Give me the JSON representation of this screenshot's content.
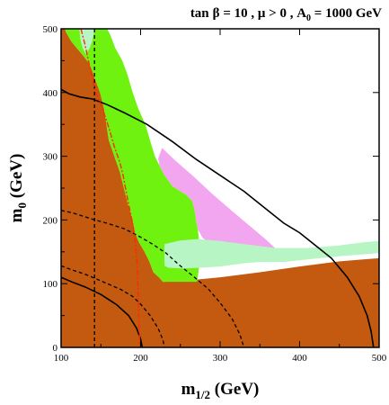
{
  "chart_data": {
    "type": "area",
    "title_parts": {
      "tan": "tan",
      "beta": "β",
      "eq1": " = 10 ,  ",
      "mu": "μ",
      "gt": " > 0 , A",
      "a_sub": "0",
      "eq2": " = 1000 GeV"
    },
    "xlabel": {
      "main": "m",
      "sub": "1/2",
      "unit": " (GeV)"
    },
    "ylabel": {
      "main": "m",
      "sub": "0",
      "unit": " (GeV)"
    },
    "xlim": [
      100,
      500
    ],
    "ylim": [
      0,
      500
    ],
    "x_ticks": [
      100,
      200,
      300,
      400,
      500
    ],
    "y_ticks": [
      0,
      100,
      200,
      300,
      400,
      500
    ],
    "colors": {
      "brown": "#c35a10",
      "green": "#6ff20f",
      "pink": "#f3a6f0",
      "light_green": "#b8f5c4",
      "red_dash": "#ff2a00",
      "black": "#000000"
    },
    "regions": [
      {
        "name": "brown-excluded-region",
        "color": "brown",
        "points": [
          [
            100,
            0
          ],
          [
            100,
            500
          ],
          [
            105,
            500
          ],
          [
            106,
            495
          ],
          [
            113,
            480
          ],
          [
            121,
            468
          ],
          [
            129,
            456
          ],
          [
            135,
            446
          ],
          [
            139,
            435
          ],
          [
            143,
            420
          ],
          [
            149,
            400
          ],
          [
            154,
            375
          ],
          [
            157,
            350
          ],
          [
            160,
            325
          ],
          [
            167,
            300
          ],
          [
            174,
            275
          ],
          [
            179,
            250
          ],
          [
            184,
            225
          ],
          [
            190,
            200
          ],
          [
            193,
            180
          ],
          [
            198,
            165
          ],
          [
            205,
            150
          ],
          [
            211,
            135
          ],
          [
            216,
            118
          ],
          [
            223,
            110
          ],
          [
            228,
            103
          ],
          [
            250,
            104
          ],
          [
            300,
            110
          ],
          [
            350,
            118
          ],
          [
            400,
            127
          ],
          [
            450,
            135
          ],
          [
            480,
            138
          ],
          [
            500,
            140
          ],
          [
            500,
            0
          ]
        ]
      },
      {
        "name": "green-band-region",
        "color": "green",
        "points": [
          [
            100,
            500
          ],
          [
            158,
            500
          ],
          [
            162,
            490
          ],
          [
            168,
            470
          ],
          [
            177,
            450
          ],
          [
            183,
            430
          ],
          [
            190,
            400
          ],
          [
            197,
            375
          ],
          [
            206,
            350
          ],
          [
            213,
            320
          ],
          [
            218,
            300
          ],
          [
            224,
            285
          ],
          [
            230,
            270
          ],
          [
            240,
            253
          ],
          [
            250,
            245
          ],
          [
            257,
            240
          ],
          [
            265,
            230
          ],
          [
            268,
            215
          ],
          [
            270,
            198
          ],
          [
            272,
            185
          ],
          [
            275,
            150
          ],
          [
            273,
            120
          ],
          [
            271,
            103
          ],
          [
            228,
            103
          ],
          [
            223,
            110
          ],
          [
            216,
            118
          ],
          [
            211,
            135
          ],
          [
            205,
            150
          ],
          [
            198,
            165
          ],
          [
            193,
            180
          ],
          [
            190,
            200
          ],
          [
            184,
            225
          ],
          [
            179,
            250
          ],
          [
            174,
            275
          ],
          [
            167,
            300
          ],
          [
            160,
            325
          ],
          [
            157,
            350
          ],
          [
            154,
            375
          ],
          [
            149,
            400
          ],
          [
            143,
            420
          ],
          [
            139,
            435
          ],
          [
            135,
            446
          ],
          [
            129,
            456
          ],
          [
            121,
            468
          ],
          [
            113,
            480
          ],
          [
            106,
            495
          ],
          [
            105,
            500
          ]
        ]
      },
      {
        "name": "pink-region",
        "color": "pink",
        "points": [
          [
            224,
            285
          ],
          [
            230,
            270
          ],
          [
            240,
            253
          ],
          [
            250,
            245
          ],
          [
            257,
            240
          ],
          [
            265,
            230
          ],
          [
            268,
            215
          ],
          [
            270,
            198
          ],
          [
            272,
            185
          ],
          [
            278,
            172
          ],
          [
            290,
            160
          ],
          [
            310,
            152
          ],
          [
            330,
            150
          ],
          [
            350,
            150
          ],
          [
            364,
            152
          ],
          [
            376,
            148
          ],
          [
            357,
            170
          ],
          [
            338,
            190
          ],
          [
            316,
            213
          ],
          [
            291,
            240
          ],
          [
            265,
            270
          ],
          [
            244,
            293
          ],
          [
            227,
            313
          ],
          [
            222,
            296
          ]
        ]
      },
      {
        "name": "light-green-band",
        "color": "light_green",
        "points": [
          [
            230,
            162
          ],
          [
            250,
            168
          ],
          [
            272,
            170
          ],
          [
            300,
            167
          ],
          [
            330,
            162
          ],
          [
            370,
            156
          ],
          [
            410,
            156
          ],
          [
            450,
            160
          ],
          [
            480,
            165
          ],
          [
            500,
            167
          ],
          [
            500,
            148
          ],
          [
            470,
            145
          ],
          [
            440,
            142
          ],
          [
            410,
            138
          ],
          [
            380,
            134
          ],
          [
            350,
            134
          ],
          [
            330,
            132
          ],
          [
            300,
            127
          ],
          [
            275,
            125
          ],
          [
            255,
            124
          ],
          [
            235,
            125
          ],
          [
            230,
            128
          ]
        ]
      },
      {
        "name": "light-green-top-sliver",
        "color": "light_green",
        "points": [
          [
            123,
            500
          ],
          [
            142,
            500
          ],
          [
            141,
            492
          ],
          [
            139,
            480
          ],
          [
            136,
            470
          ],
          [
            131,
            460
          ],
          [
            127,
            470
          ],
          [
            124,
            485
          ]
        ]
      }
    ],
    "contours": [
      {
        "name": "black-contour-upper",
        "style": "solid",
        "points": [
          [
            100,
            405
          ],
          [
            110,
            398
          ],
          [
            124,
            393
          ],
          [
            139,
            390
          ],
          [
            158,
            381
          ],
          [
            180,
            368
          ],
          [
            208,
            350
          ],
          [
            240,
            323
          ],
          [
            270,
            295
          ],
          [
            300,
            270
          ],
          [
            330,
            245
          ],
          [
            355,
            220
          ],
          [
            380,
            195
          ],
          [
            400,
            180
          ],
          [
            420,
            160
          ],
          [
            440,
            140
          ],
          [
            460,
            110
          ],
          [
            475,
            80
          ],
          [
            485,
            50
          ],
          [
            490,
            25
          ],
          [
            493,
            0
          ]
        ]
      },
      {
        "name": "black-contour-lower",
        "style": "solid",
        "points": [
          [
            100,
            110
          ],
          [
            115,
            102
          ],
          [
            130,
            95
          ],
          [
            150,
            83
          ],
          [
            170,
            67
          ],
          [
            185,
            50
          ],
          [
            195,
            30
          ],
          [
            200,
            13
          ],
          [
            202,
            0
          ]
        ]
      },
      {
        "name": "dashed-contour-upper",
        "style": "dashed",
        "points": [
          [
            100,
            215
          ],
          [
            115,
            211
          ],
          [
            140,
            201
          ],
          [
            160,
            194
          ],
          [
            180,
            186
          ],
          [
            200,
            173
          ],
          [
            215,
            162
          ],
          [
            232,
            148
          ],
          [
            248,
            130
          ],
          [
            265,
            113
          ],
          [
            285,
            92
          ],
          [
            300,
            70
          ],
          [
            315,
            45
          ],
          [
            325,
            20
          ],
          [
            330,
            0
          ]
        ]
      },
      {
        "name": "dashed-contour-lower",
        "style": "dashed",
        "points": [
          [
            100,
            128
          ],
          [
            115,
            121
          ],
          [
            130,
            115
          ],
          [
            145,
            107
          ],
          [
            160,
            99
          ],
          [
            175,
            91
          ],
          [
            190,
            80
          ],
          [
            200,
            68
          ],
          [
            212,
            50
          ],
          [
            222,
            30
          ],
          [
            228,
            12
          ],
          [
            230,
            0
          ]
        ]
      },
      {
        "name": "dashed-vertical-line",
        "style": "dashed",
        "points": [
          [
            142,
            0
          ],
          [
            142,
            500
          ]
        ]
      },
      {
        "name": "red-dashdot-contour",
        "style": "red",
        "points": [
          [
            125,
            500
          ],
          [
            130,
            476
          ],
          [
            135,
            446
          ],
          [
            139,
            423
          ],
          [
            144,
            399
          ],
          [
            152,
            375
          ],
          [
            160,
            345
          ],
          [
            167,
            315
          ],
          [
            174,
            290
          ],
          [
            178,
            270
          ],
          [
            182,
            243
          ],
          [
            187,
            212
          ],
          [
            191,
            188
          ],
          [
            194,
            158
          ],
          [
            196,
            120
          ],
          [
            197,
            80
          ],
          [
            198,
            40
          ],
          [
            199,
            0
          ]
        ]
      }
    ]
  }
}
